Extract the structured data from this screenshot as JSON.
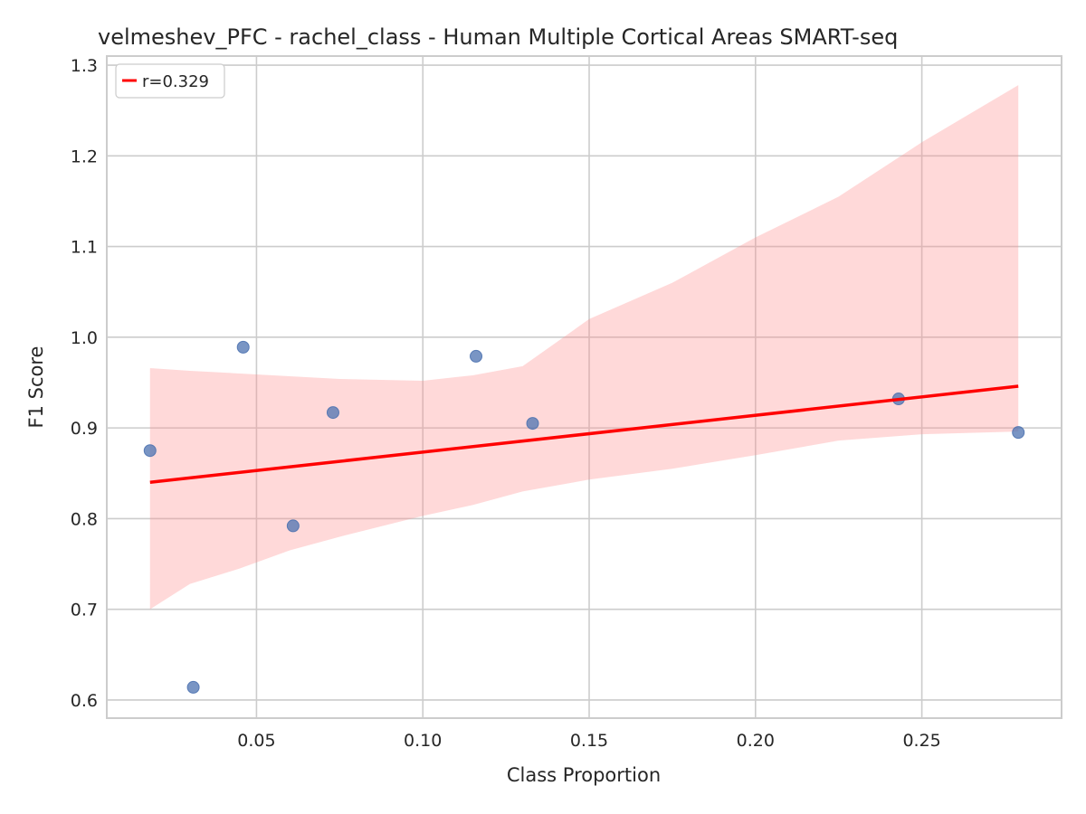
{
  "chart_data": {
    "type": "scatter",
    "title": "velmeshev_PFC - rachel_class - Human Multiple Cortical Areas SMART-seq",
    "xlabel": "Class Proportion",
    "ylabel": "F1 Score",
    "xlim": [
      0.005,
      0.292
    ],
    "ylim": [
      0.58,
      1.31
    ],
    "x_ticks": [
      0.05,
      0.1,
      0.15,
      0.2,
      0.25
    ],
    "x_tick_labels": [
      "0.05",
      "0.10",
      "0.15",
      "0.20",
      "0.25"
    ],
    "y_ticks": [
      0.6,
      0.7,
      0.8,
      0.9,
      1.0,
      1.1,
      1.2,
      1.3
    ],
    "y_tick_labels": [
      "0.6",
      "0.7",
      "0.8",
      "0.9",
      "1.0",
      "1.1",
      "1.2",
      "1.3"
    ],
    "grid": true,
    "legend": {
      "position": "top-left",
      "entries": [
        "r=0.329"
      ]
    },
    "points": [
      {
        "x": 0.018,
        "y": 0.875
      },
      {
        "x": 0.031,
        "y": 0.614
      },
      {
        "x": 0.046,
        "y": 0.989
      },
      {
        "x": 0.061,
        "y": 0.792
      },
      {
        "x": 0.073,
        "y": 0.917
      },
      {
        "x": 0.116,
        "y": 0.979
      },
      {
        "x": 0.133,
        "y": 0.905
      },
      {
        "x": 0.243,
        "y": 0.932
      },
      {
        "x": 0.279,
        "y": 0.895
      }
    ],
    "regression": {
      "label": "r=0.329",
      "start": {
        "x": 0.018,
        "y": 0.84
      },
      "end": {
        "x": 0.279,
        "y": 0.946
      }
    },
    "confidence_band": {
      "x": [
        0.018,
        0.03,
        0.045,
        0.06,
        0.075,
        0.1,
        0.115,
        0.13,
        0.15,
        0.175,
        0.2,
        0.225,
        0.25,
        0.279
      ],
      "upper": [
        0.966,
        0.963,
        0.96,
        0.957,
        0.954,
        0.952,
        0.958,
        0.968,
        1.02,
        1.06,
        1.11,
        1.155,
        1.215,
        1.278
      ],
      "lower": [
        0.7,
        0.728,
        0.745,
        0.765,
        0.78,
        0.803,
        0.815,
        0.83,
        0.843,
        0.855,
        0.87,
        0.886,
        0.893,
        0.896
      ]
    },
    "colors": {
      "points": "#4c72b0",
      "regression": "#ff0000",
      "band": "#ff8c8c",
      "grid": "#cccccc",
      "spine": "#cccccc"
    }
  }
}
